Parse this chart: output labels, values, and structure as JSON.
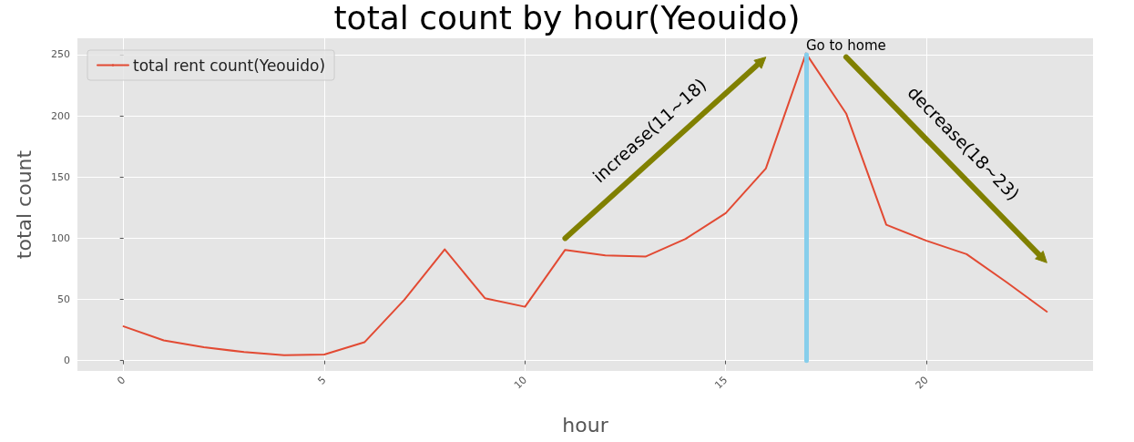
{
  "chart_data": {
    "type": "line",
    "title": "total count by hour(Yeouido)",
    "xlabel": "hour",
    "ylabel": "total count",
    "x": [
      0,
      1,
      2,
      3,
      4,
      5,
      6,
      7,
      8,
      9,
      10,
      11,
      12,
      13,
      14,
      15,
      16,
      17,
      18,
      19,
      20,
      21,
      22,
      23
    ],
    "series": [
      {
        "name": "total rent count(Yeouido)",
        "color": "#e24a33",
        "values": [
          28,
          16.5,
          11,
          7,
          4.5,
          5,
          15,
          50,
          91,
          51,
          44,
          90.5,
          86,
          85,
          99.5,
          120.5,
          157,
          251,
          202,
          111,
          98,
          87,
          64,
          40
        ]
      }
    ],
    "xlim": [
      -1.15,
      24.15
    ],
    "xticks": [
      0,
      5,
      10,
      15,
      20
    ],
    "ylim": [
      -8.4,
      263.4
    ],
    "yticks": [
      0,
      50,
      100,
      150,
      200,
      250
    ],
    "grid": true,
    "legend": "top left",
    "line_style": "solid",
    "ref_lines": [
      {
        "axis": "x",
        "value": 17,
        "label": "Go to home",
        "color": "#87ceeb"
      }
    ],
    "annotations": [
      "increase(11~18)",
      "decrease(18~23)"
    ]
  }
}
